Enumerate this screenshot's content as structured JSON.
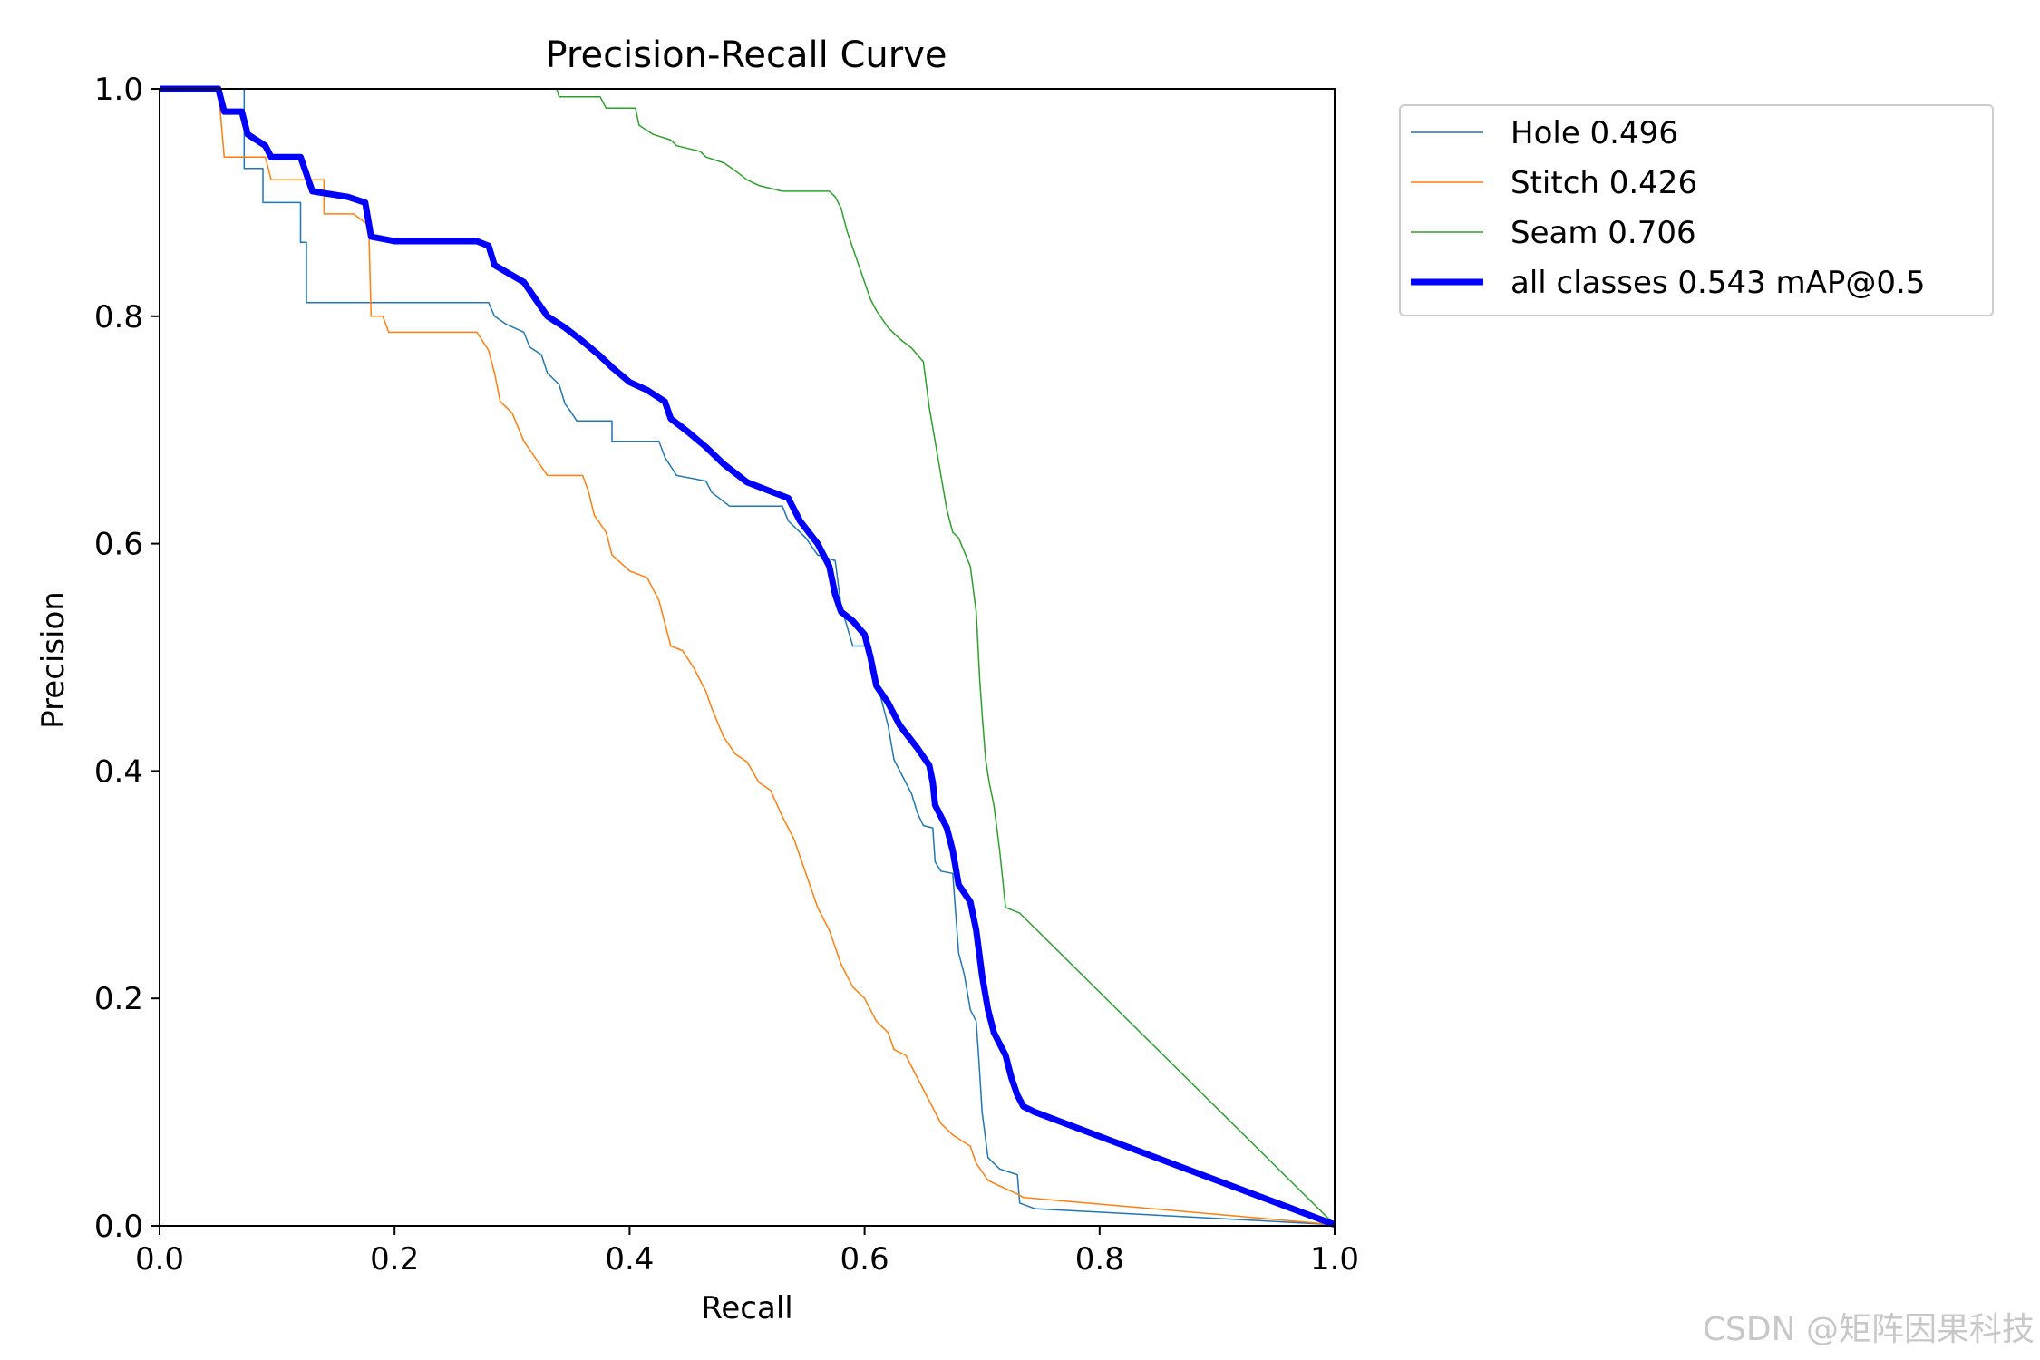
{
  "chart_data": {
    "type": "line",
    "title": "Precision-Recall Curve",
    "xlabel": "Recall",
    "ylabel": "Precision",
    "xlim": [
      0,
      1
    ],
    "ylim": [
      0,
      1
    ],
    "grid": false,
    "legend_position": "outside-top-right",
    "xticks": [
      "0.0",
      "0.2",
      "0.4",
      "0.6",
      "0.8",
      "1.0"
    ],
    "yticks": [
      "0.0",
      "0.2",
      "0.4",
      "0.6",
      "0.8",
      "1.0"
    ],
    "series": [
      {
        "name": "Hole 0.496",
        "color": "#1f77b4",
        "width": 1.5,
        "points": [
          [
            0,
            1.0
          ],
          [
            0.072,
            1.0
          ],
          [
            0.072,
            0.93
          ],
          [
            0.088,
            0.93
          ],
          [
            0.088,
            0.9
          ],
          [
            0.12,
            0.9
          ],
          [
            0.12,
            0.865
          ],
          [
            0.125,
            0.865
          ],
          [
            0.125,
            0.812
          ],
          [
            0.28,
            0.812
          ],
          [
            0.285,
            0.8
          ],
          [
            0.295,
            0.793
          ],
          [
            0.31,
            0.786
          ],
          [
            0.315,
            0.773
          ],
          [
            0.325,
            0.766
          ],
          [
            0.33,
            0.75
          ],
          [
            0.34,
            0.74
          ],
          [
            0.345,
            0.723
          ],
          [
            0.35,
            0.716
          ],
          [
            0.355,
            0.708
          ],
          [
            0.385,
            0.708
          ],
          [
            0.385,
            0.69
          ],
          [
            0.425,
            0.69
          ],
          [
            0.43,
            0.676
          ],
          [
            0.44,
            0.66
          ],
          [
            0.465,
            0.655
          ],
          [
            0.47,
            0.645
          ],
          [
            0.485,
            0.633
          ],
          [
            0.53,
            0.633
          ],
          [
            0.535,
            0.62
          ],
          [
            0.55,
            0.605
          ],
          [
            0.56,
            0.59
          ],
          [
            0.575,
            0.585
          ],
          [
            0.58,
            0.545
          ],
          [
            0.59,
            0.51
          ],
          [
            0.605,
            0.51
          ],
          [
            0.61,
            0.48
          ],
          [
            0.62,
            0.44
          ],
          [
            0.625,
            0.41
          ],
          [
            0.63,
            0.4
          ],
          [
            0.64,
            0.38
          ],
          [
            0.645,
            0.363
          ],
          [
            0.65,
            0.352
          ],
          [
            0.658,
            0.35
          ],
          [
            0.66,
            0.32
          ],
          [
            0.665,
            0.312
          ],
          [
            0.675,
            0.31
          ],
          [
            0.68,
            0.24
          ],
          [
            0.685,
            0.22
          ],
          [
            0.69,
            0.19
          ],
          [
            0.695,
            0.18
          ],
          [
            0.697,
            0.15
          ],
          [
            0.7,
            0.1
          ],
          [
            0.705,
            0.06
          ],
          [
            0.715,
            0.05
          ],
          [
            0.73,
            0.045
          ],
          [
            0.732,
            0.02
          ],
          [
            0.745,
            0.015
          ],
          [
            1.0,
            0.001
          ]
        ]
      },
      {
        "name": "Stitch 0.426",
        "color": "#ff7f0e",
        "width": 1.5,
        "points": [
          [
            0,
            1.0
          ],
          [
            0.05,
            1.0
          ],
          [
            0.055,
            0.94
          ],
          [
            0.09,
            0.94
          ],
          [
            0.095,
            0.92
          ],
          [
            0.14,
            0.92
          ],
          [
            0.14,
            0.89
          ],
          [
            0.165,
            0.89
          ],
          [
            0.178,
            0.88
          ],
          [
            0.18,
            0.8
          ],
          [
            0.19,
            0.8
          ],
          [
            0.195,
            0.786
          ],
          [
            0.27,
            0.786
          ],
          [
            0.28,
            0.77
          ],
          [
            0.285,
            0.75
          ],
          [
            0.29,
            0.725
          ],
          [
            0.3,
            0.715
          ],
          [
            0.31,
            0.69
          ],
          [
            0.32,
            0.675
          ],
          [
            0.33,
            0.66
          ],
          [
            0.36,
            0.66
          ],
          [
            0.365,
            0.646
          ],
          [
            0.37,
            0.625
          ],
          [
            0.38,
            0.61
          ],
          [
            0.385,
            0.59
          ],
          [
            0.4,
            0.576
          ],
          [
            0.415,
            0.57
          ],
          [
            0.425,
            0.55
          ],
          [
            0.435,
            0.51
          ],
          [
            0.445,
            0.506
          ],
          [
            0.455,
            0.49
          ],
          [
            0.465,
            0.47
          ],
          [
            0.47,
            0.455
          ],
          [
            0.48,
            0.43
          ],
          [
            0.49,
            0.415
          ],
          [
            0.5,
            0.408
          ],
          [
            0.51,
            0.39
          ],
          [
            0.52,
            0.383
          ],
          [
            0.53,
            0.36
          ],
          [
            0.54,
            0.34
          ],
          [
            0.55,
            0.31
          ],
          [
            0.56,
            0.28
          ],
          [
            0.57,
            0.26
          ],
          [
            0.58,
            0.23
          ],
          [
            0.59,
            0.21
          ],
          [
            0.6,
            0.2
          ],
          [
            0.61,
            0.18
          ],
          [
            0.62,
            0.17
          ],
          [
            0.625,
            0.155
          ],
          [
            0.635,
            0.15
          ],
          [
            0.645,
            0.13
          ],
          [
            0.655,
            0.11
          ],
          [
            0.665,
            0.09
          ],
          [
            0.675,
            0.08
          ],
          [
            0.69,
            0.07
          ],
          [
            0.695,
            0.055
          ],
          [
            0.705,
            0.04
          ],
          [
            0.715,
            0.035
          ],
          [
            0.73,
            0.028
          ],
          [
            0.735,
            0.025
          ],
          [
            1.0,
            0.001
          ]
        ]
      },
      {
        "name": "Seam 0.706",
        "color": "#2ca02c",
        "width": 1.5,
        "points": [
          [
            0.338,
            1.0
          ],
          [
            0.34,
            0.993
          ],
          [
            0.375,
            0.993
          ],
          [
            0.38,
            0.983
          ],
          [
            0.405,
            0.983
          ],
          [
            0.408,
            0.968
          ],
          [
            0.42,
            0.96
          ],
          [
            0.435,
            0.955
          ],
          [
            0.44,
            0.95
          ],
          [
            0.46,
            0.945
          ],
          [
            0.465,
            0.94
          ],
          [
            0.48,
            0.935
          ],
          [
            0.49,
            0.928
          ],
          [
            0.5,
            0.92
          ],
          [
            0.51,
            0.915
          ],
          [
            0.53,
            0.91
          ],
          [
            0.57,
            0.91
          ],
          [
            0.575,
            0.905
          ],
          [
            0.58,
            0.895
          ],
          [
            0.585,
            0.875
          ],
          [
            0.59,
            0.86
          ],
          [
            0.595,
            0.845
          ],
          [
            0.6,
            0.83
          ],
          [
            0.605,
            0.815
          ],
          [
            0.61,
            0.805
          ],
          [
            0.62,
            0.79
          ],
          [
            0.63,
            0.78
          ],
          [
            0.64,
            0.772
          ],
          [
            0.65,
            0.76
          ],
          [
            0.655,
            0.72
          ],
          [
            0.66,
            0.69
          ],
          [
            0.665,
            0.66
          ],
          [
            0.67,
            0.63
          ],
          [
            0.675,
            0.61
          ],
          [
            0.68,
            0.605
          ],
          [
            0.69,
            0.58
          ],
          [
            0.695,
            0.54
          ],
          [
            0.698,
            0.48
          ],
          [
            0.7,
            0.45
          ],
          [
            0.703,
            0.41
          ],
          [
            0.706,
            0.39
          ],
          [
            0.71,
            0.37
          ],
          [
            0.715,
            0.33
          ],
          [
            0.718,
            0.3
          ],
          [
            0.72,
            0.28
          ],
          [
            0.732,
            0.275
          ],
          [
            1.0,
            0.001
          ]
        ]
      },
      {
        "name": "all classes 0.543 mAP@0.5",
        "color": "#0000ff",
        "width": 7,
        "points": [
          [
            0,
            1.0
          ],
          [
            0.05,
            1.0
          ],
          [
            0.055,
            0.98
          ],
          [
            0.07,
            0.98
          ],
          [
            0.075,
            0.96
          ],
          [
            0.09,
            0.95
          ],
          [
            0.095,
            0.94
          ],
          [
            0.12,
            0.94
          ],
          [
            0.125,
            0.925
          ],
          [
            0.13,
            0.91
          ],
          [
            0.16,
            0.905
          ],
          [
            0.175,
            0.9
          ],
          [
            0.18,
            0.87
          ],
          [
            0.2,
            0.866
          ],
          [
            0.27,
            0.866
          ],
          [
            0.28,
            0.862
          ],
          [
            0.285,
            0.845
          ],
          [
            0.3,
            0.836
          ],
          [
            0.31,
            0.83
          ],
          [
            0.32,
            0.815
          ],
          [
            0.33,
            0.8
          ],
          [
            0.345,
            0.79
          ],
          [
            0.36,
            0.778
          ],
          [
            0.375,
            0.765
          ],
          [
            0.385,
            0.755
          ],
          [
            0.4,
            0.742
          ],
          [
            0.415,
            0.735
          ],
          [
            0.43,
            0.725
          ],
          [
            0.435,
            0.71
          ],
          [
            0.45,
            0.698
          ],
          [
            0.465,
            0.685
          ],
          [
            0.48,
            0.67
          ],
          [
            0.5,
            0.654
          ],
          [
            0.52,
            0.646
          ],
          [
            0.535,
            0.64
          ],
          [
            0.545,
            0.62
          ],
          [
            0.56,
            0.6
          ],
          [
            0.57,
            0.58
          ],
          [
            0.575,
            0.555
          ],
          [
            0.58,
            0.54
          ],
          [
            0.59,
            0.532
          ],
          [
            0.6,
            0.52
          ],
          [
            0.605,
            0.5
          ],
          [
            0.61,
            0.475
          ],
          [
            0.62,
            0.46
          ],
          [
            0.63,
            0.44
          ],
          [
            0.645,
            0.42
          ],
          [
            0.655,
            0.405
          ],
          [
            0.658,
            0.39
          ],
          [
            0.66,
            0.37
          ],
          [
            0.67,
            0.35
          ],
          [
            0.675,
            0.33
          ],
          [
            0.68,
            0.3
          ],
          [
            0.69,
            0.285
          ],
          [
            0.695,
            0.26
          ],
          [
            0.7,
            0.22
          ],
          [
            0.705,
            0.19
          ],
          [
            0.71,
            0.17
          ],
          [
            0.715,
            0.16
          ],
          [
            0.72,
            0.15
          ],
          [
            0.725,
            0.13
          ],
          [
            0.73,
            0.115
          ],
          [
            0.735,
            0.105
          ],
          [
            0.745,
            0.1
          ],
          [
            1.0,
            0.001
          ]
        ]
      }
    ]
  },
  "watermark": "CSDN @矩阵因果科技"
}
